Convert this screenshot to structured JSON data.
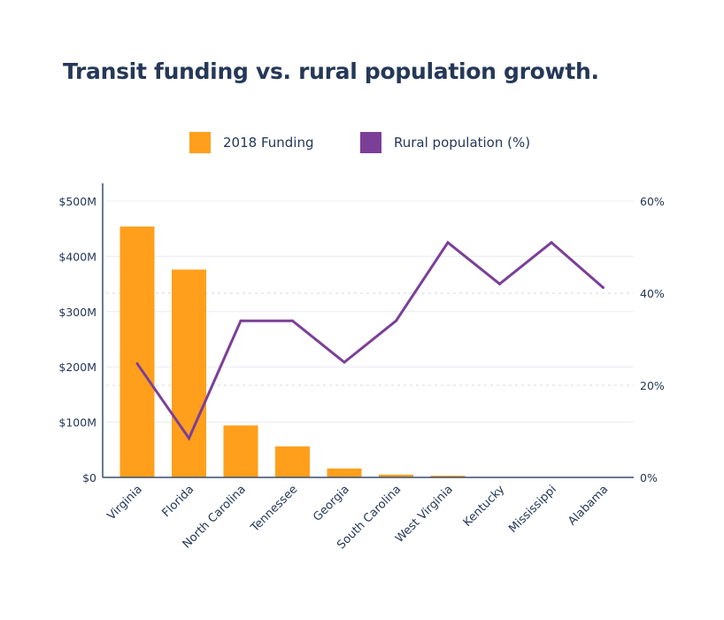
{
  "chart_data": {
    "type": "bar",
    "title": "Transit funding vs. rural population growth.",
    "categories": [
      "Virginia",
      "Florida",
      "North Carolina",
      "Tennessee",
      "Georgia",
      "South Carolina",
      "West Virginia",
      "Kentucky",
      "Mississippi",
      "Alabama"
    ],
    "series": [
      {
        "name": "2018 Funding",
        "type": "bar",
        "axis": "left",
        "color": "#FF9F1C",
        "values": [
          454,
          376,
          94,
          56,
          16,
          5,
          3,
          0,
          0,
          0
        ]
      },
      {
        "name": "Rural population (%)",
        "type": "line",
        "axis": "right",
        "color": "#7B3F98",
        "values": [
          24.7,
          8.5,
          34,
          34,
          25,
          34,
          51,
          42,
          51,
          41.2
        ]
      }
    ],
    "left_axis": {
      "label": "",
      "unit": "$M",
      "ylim": [
        0,
        500
      ],
      "ticks": [
        0,
        100,
        200,
        300,
        400,
        500
      ],
      "tick_labels": [
        "$0",
        "$100M",
        "$200M",
        "$300M",
        "$400M",
        "$500M"
      ]
    },
    "right_axis": {
      "label": "",
      "unit": "%",
      "ylim": [
        0,
        60
      ],
      "ticks": [
        0,
        20,
        40,
        60
      ],
      "tick_labels": [
        "0%",
        "20%",
        "40%",
        "60%"
      ]
    },
    "xlabel": "",
    "grid": true,
    "legend": "top-center",
    "colors": {
      "text": "#253858",
      "grid": "#E8ECF2",
      "axis": "#3A4D6E"
    }
  }
}
